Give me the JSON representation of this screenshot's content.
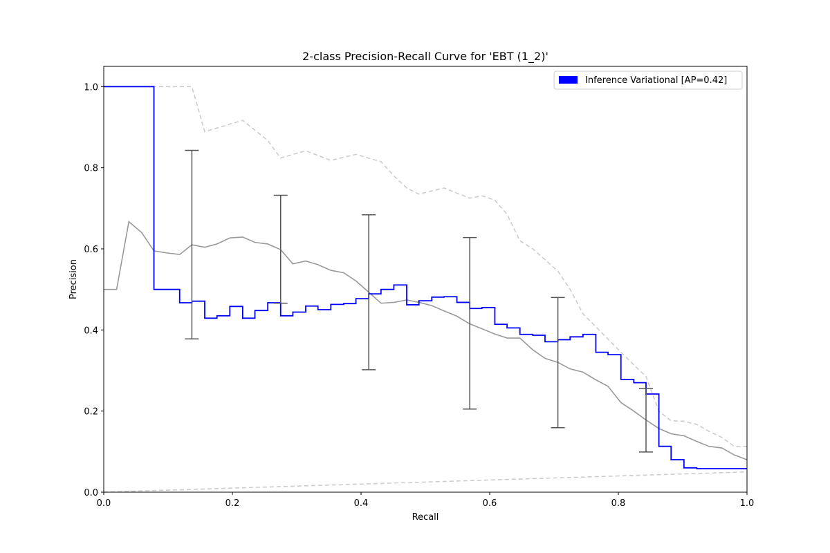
{
  "chart_data": {
    "type": "line",
    "title": "2-class Precision-Recall Curve for 'EBT (1_2)'",
    "xlabel": "Recall",
    "ylabel": "Precision",
    "xlim": [
      0.0,
      1.0
    ],
    "ylim": [
      0.0,
      1.05
    ],
    "x_ticks": [
      "0.0",
      "0.2",
      "0.4",
      "0.6",
      "0.8",
      "1.0"
    ],
    "y_ticks": [
      "0.0",
      "0.2",
      "0.4",
      "0.6",
      "0.8",
      "1.0"
    ],
    "grid": false,
    "legend": {
      "placement": "top-right",
      "entries": [
        {
          "label": "Inference Variational [AP=0.42]",
          "color": "#0000ff"
        }
      ]
    },
    "series": [
      {
        "name": "Inference Variational [AP=0.42]",
        "style": "step",
        "color": "#0000ff",
        "x": [
          0.0,
          0.078,
          0.078,
          0.098,
          0.118,
          0.118,
          0.137,
          0.137,
          0.157,
          0.157,
          0.176,
          0.196,
          0.216,
          0.216,
          0.235,
          0.255,
          0.275,
          0.275,
          0.294,
          0.314,
          0.333,
          0.353,
          0.373,
          0.392,
          0.412,
          0.431,
          0.451,
          0.471,
          0.471,
          0.49,
          0.51,
          0.529,
          0.549,
          0.569,
          0.569,
          0.588,
          0.608,
          0.608,
          0.627,
          0.647,
          0.667,
          0.686,
          0.706,
          0.725,
          0.745,
          0.765,
          0.765,
          0.784,
          0.804,
          0.804,
          0.824,
          0.843,
          0.863,
          0.863,
          0.882,
          0.902,
          0.922,
          1.0
        ],
        "y": [
          1.0,
          1.0,
          0.5,
          0.5,
          0.5,
          0.467,
          0.467,
          0.471,
          0.471,
          0.429,
          0.435,
          0.458,
          0.458,
          0.429,
          0.448,
          0.467,
          0.467,
          0.435,
          0.444,
          0.459,
          0.45,
          0.463,
          0.465,
          0.477,
          0.489,
          0.5,
          0.511,
          0.511,
          0.462,
          0.472,
          0.481,
          0.482,
          0.468,
          0.468,
          0.453,
          0.455,
          0.455,
          0.414,
          0.405,
          0.389,
          0.387,
          0.371,
          0.376,
          0.383,
          0.389,
          0.389,
          0.345,
          0.339,
          0.339,
          0.278,
          0.27,
          0.242,
          0.242,
          0.113,
          0.08,
          0.06,
          0.058,
          0.058
        ]
      },
      {
        "name": "",
        "style": "line",
        "color": "#999999",
        "x": [
          0.0,
          0.02,
          0.039,
          0.059,
          0.078,
          0.098,
          0.118,
          0.137,
          0.157,
          0.176,
          0.196,
          0.216,
          0.235,
          0.255,
          0.275,
          0.294,
          0.314,
          0.333,
          0.353,
          0.373,
          0.392,
          0.412,
          0.431,
          0.451,
          0.471,
          0.49,
          0.51,
          0.529,
          0.549,
          0.569,
          0.588,
          0.608,
          0.627,
          0.647,
          0.667,
          0.686,
          0.706,
          0.725,
          0.745,
          0.765,
          0.784,
          0.804,
          0.824,
          0.843,
          0.863,
          0.882,
          0.902,
          0.922,
          0.941,
          0.961,
          0.98,
          1.0
        ],
        "y": [
          0.5,
          0.5,
          0.667,
          0.64,
          0.595,
          0.59,
          0.586,
          0.61,
          0.604,
          0.612,
          0.627,
          0.629,
          0.616,
          0.612,
          0.598,
          0.563,
          0.57,
          0.561,
          0.547,
          0.541,
          0.521,
          0.493,
          0.466,
          0.468,
          0.474,
          0.468,
          0.46,
          0.447,
          0.434,
          0.415,
          0.403,
          0.39,
          0.38,
          0.38,
          0.351,
          0.33,
          0.32,
          0.304,
          0.296,
          0.277,
          0.261,
          0.221,
          0.2,
          0.178,
          0.157,
          0.144,
          0.139,
          0.125,
          0.113,
          0.109,
          0.092,
          0.08
        ]
      },
      {
        "name": "",
        "style": "dashed",
        "color": "#cccccc",
        "x": [
          0.0,
          0.078,
          0.137,
          0.157,
          0.216,
          0.255,
          0.275,
          0.314,
          0.353,
          0.392,
          0.431,
          0.451,
          0.471,
          0.49,
          0.529,
          0.569,
          0.588,
          0.608,
          0.627,
          0.647,
          0.667,
          0.706,
          0.725,
          0.745,
          0.765,
          0.804,
          0.843,
          0.863,
          0.882,
          0.902,
          0.922,
          0.941,
          0.961,
          0.98,
          1.0
        ],
        "y": [
          1.0,
          1.0,
          1.0,
          0.889,
          0.917,
          0.867,
          0.824,
          0.842,
          0.818,
          0.833,
          0.815,
          0.78,
          0.75,
          0.735,
          0.75,
          0.725,
          0.731,
          0.72,
          0.685,
          0.62,
          0.6,
          0.545,
          0.5,
          0.44,
          0.408,
          0.345,
          0.285,
          0.2,
          0.176,
          0.175,
          0.167,
          0.15,
          0.135,
          0.113,
          0.113
        ]
      },
      {
        "name": "",
        "style": "dashed",
        "color": "#cccccc",
        "x": [
          0.0,
          1.0
        ],
        "y": [
          0.0,
          0.05
        ]
      }
    ],
    "error_bars": [
      {
        "x": 0.137,
        "low": 0.378,
        "high": 0.843
      },
      {
        "x": 0.275,
        "low": 0.466,
        "high": 0.732
      },
      {
        "x": 0.412,
        "low": 0.302,
        "high": 0.684
      },
      {
        "x": 0.569,
        "low": 0.205,
        "high": 0.628
      },
      {
        "x": 0.706,
        "low": 0.159,
        "high": 0.48
      },
      {
        "x": 0.843,
        "low": 0.099,
        "high": 0.256
      }
    ],
    "error_bar_color": "#555555"
  }
}
